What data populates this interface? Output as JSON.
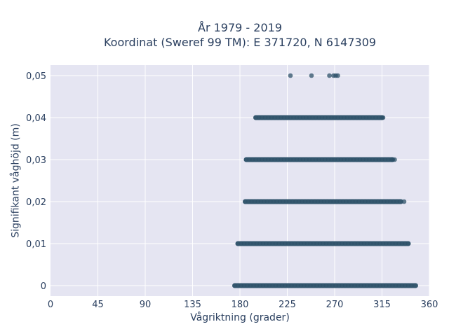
{
  "chart_data": {
    "type": "scatter",
    "title_line1": "År 1979 - 2019",
    "title_line2": "Koordinat (Sweref 99 TM): E 371720, N 6147309",
    "xlabel": "Vågriktning (grader)",
    "ylabel": "Signifikant våghöjd (m)",
    "xlim": [
      0,
      360
    ],
    "ylim": [
      -0.0025,
      0.0525
    ],
    "xticks": [
      0,
      45,
      90,
      135,
      180,
      225,
      270,
      315,
      360
    ],
    "xtick_labels": [
      "0",
      "45",
      "90",
      "135",
      "180",
      "225",
      "270",
      "315",
      "360"
    ],
    "yticks": [
      0,
      0.01,
      0.02,
      0.03,
      0.04,
      0.05
    ],
    "ytick_labels": [
      "0",
      "0,01",
      "0,02",
      "0,03",
      "0,04",
      "0,05"
    ],
    "grid": true,
    "marker_color": "#2c5068",
    "bands": [
      {
        "y": 0,
        "x_min": 175,
        "x_max": 347
      },
      {
        "y": 0.01,
        "x_min": 178,
        "x_max": 340
      },
      {
        "y": 0.02,
        "x_min": 185,
        "x_max": 333
      },
      {
        "y": 0.03,
        "x_min": 186,
        "x_max": 325
      },
      {
        "y": 0.04,
        "x_min": 195,
        "x_max": 315
      }
    ],
    "points": [
      {
        "x": 325,
        "y": 0.03
      },
      {
        "x": 327,
        "y": 0.03
      },
      {
        "x": 336,
        "y": 0.02
      },
      {
        "x": 316,
        "y": 0.04
      },
      {
        "x": 228,
        "y": 0.05
      },
      {
        "x": 248,
        "y": 0.05
      },
      {
        "x": 265,
        "y": 0.05
      },
      {
        "x": 269,
        "y": 0.05
      },
      {
        "x": 271,
        "y": 0.05
      },
      {
        "x": 273,
        "y": 0.05
      }
    ]
  }
}
